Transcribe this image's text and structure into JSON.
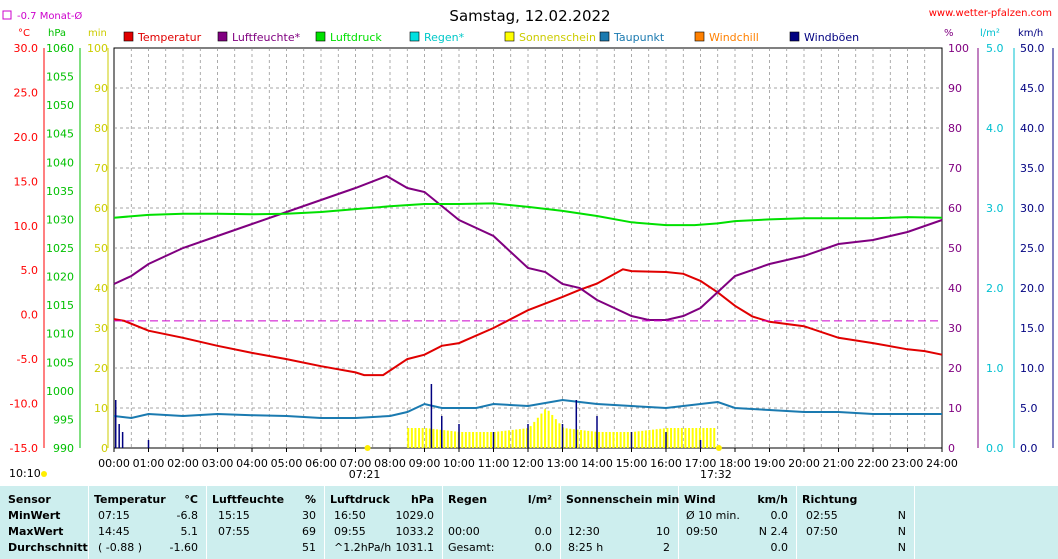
{
  "header": {
    "title": "Samstag, 12.02.2022",
    "site": "www.wetter-pfalzen.com",
    "monthly_avg_label": "-0.7 Monat-Ø",
    "sun_rise_marker": "10:10"
  },
  "legend": [
    {
      "label": "Temperatur",
      "color": "#e00000"
    },
    {
      "label": "Luftfeuchte*",
      "color": "#800080"
    },
    {
      "label": "Luftdruck",
      "color": "#00e000"
    },
    {
      "label": "Regen*",
      "color": "#00e0e0"
    },
    {
      "label": "Sonnenschein",
      "color": "#ffff00"
    },
    {
      "label": "Taupunkt",
      "color": "#1a7ab0"
    },
    {
      "label": "Windchill",
      "color": "#ff8000"
    },
    {
      "label": "Windböen",
      "color": "#000080"
    }
  ],
  "axes": {
    "temp_unit": "°C",
    "hpa_unit": "hPa",
    "min_unit": "min",
    "pct_unit": "%",
    "rain_unit": "l/m²",
    "wind_unit": "km/h",
    "temp_ticks": [
      "30.0",
      "25.0",
      "20.0",
      "15.0",
      "10.0",
      "5.0",
      "0.0",
      "-5.0",
      "-10.0",
      "-15.0"
    ],
    "hpa_ticks": [
      "1060",
      "1055",
      "1050",
      "1045",
      "1040",
      "1035",
      "1030",
      "1025",
      "1020",
      "1015",
      "1010",
      "1005",
      "1000",
      "995",
      "990"
    ],
    "min_ticks": [
      "100",
      "90",
      "80",
      "70",
      "60",
      "50",
      "40",
      "30",
      "20",
      "10",
      "0"
    ],
    "pct_ticks": [
      "100",
      "90",
      "80",
      "70",
      "60",
      "50",
      "40",
      "30",
      "20",
      "10",
      "0"
    ],
    "rain_ticks": [
      "5.0",
      "4.0",
      "3.0",
      "2.0",
      "1.0",
      "0.0"
    ],
    "wind_ticks": [
      "50.0",
      "45.0",
      "40.0",
      "35.0",
      "30.0",
      "25.0",
      "20.0",
      "15.0",
      "10.0",
      "5.0",
      "0.0"
    ],
    "hour_ticks": [
      "00:00",
      "01:00",
      "02:00",
      "03:00",
      "04:00",
      "05:00",
      "06:00",
      "07:00",
      "08:00",
      "09:00",
      "10:00",
      "11:00",
      "12:00",
      "13:00",
      "14:00",
      "15:00",
      "16:00",
      "17:00",
      "18:00",
      "19:00",
      "20:00",
      "21:00",
      "22:00",
      "23:00",
      "24:00"
    ],
    "sunrise": "07:21",
    "sunset": "17:32"
  },
  "chart_data": {
    "type": "line",
    "title": "Samstag, 12.02.2022",
    "x_unit": "hours",
    "xlim": [
      0,
      24
    ],
    "grid": true,
    "series": [
      {
        "name": "Temperatur",
        "axis": "°C",
        "ylim": [
          -15,
          30
        ],
        "points": [
          [
            0,
            -0.5
          ],
          [
            0.3,
            -0.7
          ],
          [
            1,
            -1.8
          ],
          [
            2,
            -2.6
          ],
          [
            3,
            -3.5
          ],
          [
            4,
            -4.3
          ],
          [
            5,
            -5.0
          ],
          [
            6,
            -5.8
          ],
          [
            7,
            -6.5
          ],
          [
            7.25,
            -6.8
          ],
          [
            7.8,
            -6.8
          ],
          [
            8.5,
            -5.0
          ],
          [
            9,
            -4.5
          ],
          [
            9.5,
            -3.5
          ],
          [
            10,
            -3.2
          ],
          [
            11,
            -1.5
          ],
          [
            12,
            0.5
          ],
          [
            13,
            2.0
          ],
          [
            13.5,
            2.8
          ],
          [
            14,
            3.5
          ],
          [
            14.75,
            5.1
          ],
          [
            15,
            4.9
          ],
          [
            16,
            4.8
          ],
          [
            16.5,
            4.6
          ],
          [
            17,
            3.8
          ],
          [
            17.5,
            2.5
          ],
          [
            18,
            1.0
          ],
          [
            18.5,
            -0.2
          ],
          [
            19,
            -0.8
          ],
          [
            20,
            -1.3
          ],
          [
            21,
            -2.6
          ],
          [
            22,
            -3.2
          ],
          [
            23,
            -3.9
          ],
          [
            23.5,
            -4.1
          ],
          [
            24,
            -4.5
          ]
        ]
      },
      {
        "name": "Luftfeuchte*",
        "axis": "%",
        "ylim": [
          0,
          100
        ],
        "points": [
          [
            0,
            41
          ],
          [
            0.5,
            43
          ],
          [
            1,
            46
          ],
          [
            2,
            50
          ],
          [
            3,
            53
          ],
          [
            4,
            56
          ],
          [
            5,
            59
          ],
          [
            6,
            62
          ],
          [
            7,
            65
          ],
          [
            7.9,
            68
          ],
          [
            8.5,
            65
          ],
          [
            9,
            64
          ],
          [
            10,
            57
          ],
          [
            11,
            53
          ],
          [
            12,
            45
          ],
          [
            12.5,
            44
          ],
          [
            13,
            41
          ],
          [
            13.5,
            40
          ],
          [
            14,
            37
          ],
          [
            14.5,
            35
          ],
          [
            15,
            33
          ],
          [
            15.5,
            32
          ],
          [
            16,
            32
          ],
          [
            16.5,
            33
          ],
          [
            17,
            35
          ],
          [
            17.5,
            39
          ],
          [
            18,
            43
          ],
          [
            19,
            46
          ],
          [
            20,
            48
          ],
          [
            21,
            51
          ],
          [
            22,
            52
          ],
          [
            23,
            54
          ],
          [
            24,
            57
          ]
        ]
      },
      {
        "name": "Luftdruck",
        "axis": "hPa",
        "ylim": [
          990,
          1060
        ],
        "points": [
          [
            0,
            1030.3
          ],
          [
            1,
            1030.8
          ],
          [
            2,
            1031.0
          ],
          [
            3,
            1031.0
          ],
          [
            4,
            1030.9
          ],
          [
            5,
            1031.0
          ],
          [
            6,
            1031.3
          ],
          [
            7,
            1031.8
          ],
          [
            8,
            1032.3
          ],
          [
            9,
            1032.7
          ],
          [
            10,
            1032.7
          ],
          [
            11,
            1032.8
          ],
          [
            12,
            1032.2
          ],
          [
            13,
            1031.5
          ],
          [
            14,
            1030.6
          ],
          [
            15,
            1029.5
          ],
          [
            16,
            1029.0
          ],
          [
            16.83,
            1029.0
          ],
          [
            17.5,
            1029.3
          ],
          [
            18,
            1029.7
          ],
          [
            19,
            1030.0
          ],
          [
            20,
            1030.2
          ],
          [
            21,
            1030.2
          ],
          [
            22,
            1030.2
          ],
          [
            23,
            1030.4
          ],
          [
            24,
            1030.3
          ]
        ]
      },
      {
        "name": "Taupunkt",
        "axis": "min",
        "ylim": [
          0,
          100
        ],
        "points": [
          [
            0,
            8
          ],
          [
            0.5,
            7.5
          ],
          [
            1,
            8.5
          ],
          [
            2,
            8
          ],
          [
            3,
            8.5
          ],
          [
            4,
            8.2
          ],
          [
            5,
            8
          ],
          [
            6,
            7.5
          ],
          [
            7,
            7.5
          ],
          [
            8,
            8
          ],
          [
            8.5,
            9
          ],
          [
            9,
            11
          ],
          [
            9.5,
            10
          ],
          [
            10,
            10
          ],
          [
            10.5,
            10
          ],
          [
            11,
            11
          ],
          [
            12,
            10.5
          ],
          [
            13,
            12
          ],
          [
            14,
            11
          ],
          [
            15,
            10.5
          ],
          [
            16,
            10
          ],
          [
            17,
            11
          ],
          [
            17.5,
            11.5
          ],
          [
            18,
            10
          ],
          [
            19,
            9.5
          ],
          [
            20,
            9
          ],
          [
            21,
            9
          ],
          [
            22,
            8.5
          ],
          [
            23,
            8.5
          ],
          [
            24,
            8.5
          ]
        ]
      },
      {
        "name": "Sonnenschein",
        "axis": "min",
        "ylim": [
          0,
          100
        ],
        "points": [
          [
            8.5,
            5
          ],
          [
            9,
            5
          ],
          [
            10,
            4
          ],
          [
            11,
            4
          ],
          [
            12,
            5
          ],
          [
            12.5,
            10
          ],
          [
            13,
            5
          ],
          [
            14,
            4
          ],
          [
            15,
            4
          ],
          [
            16,
            5
          ],
          [
            17.4,
            5
          ]
        ]
      },
      {
        "name": "Windböen",
        "axis": "km/h",
        "ylim": [
          0,
          50
        ],
        "points": [
          [
            0.05,
            6
          ],
          [
            0.15,
            3
          ],
          [
            0.25,
            2
          ],
          [
            1,
            1
          ],
          [
            9.2,
            8
          ],
          [
            9.5,
            4
          ],
          [
            10,
            3
          ],
          [
            11,
            2
          ],
          [
            12,
            3
          ],
          [
            13,
            3
          ],
          [
            13.4,
            6
          ],
          [
            14,
            4
          ],
          [
            15,
            2
          ],
          [
            16,
            2
          ],
          [
            17,
            1
          ]
        ]
      },
      {
        "name": "-0.7 Monat-Ø",
        "axis": "°C",
        "ylim": [
          -15,
          30
        ],
        "points": [
          [
            0,
            -0.7
          ],
          [
            24,
            -0.7
          ]
        ]
      }
    ]
  },
  "stats": {
    "headers": {
      "sensor": "Sensor",
      "temp": "Temperatur",
      "temp_u": "°C",
      "hum": "Luftfeuchte",
      "hum_u": "%",
      "press": "Luftdruck",
      "press_u": "hPa",
      "rain": "Regen",
      "rain_u": "l/m²",
      "sun": "Sonnenschein min",
      "wind": "Wind",
      "wind_u": "km/h",
      "dir": "Richtung"
    },
    "rows": [
      {
        "label": "MinWert",
        "temp_time": "07:15",
        "temp_val": "-6.8",
        "hum_time": "15:15",
        "hum_val": "30",
        "press_time": "16:50",
        "press_val": "1029.0",
        "rain_time": "",
        "rain_val": "",
        "sun_time": "",
        "sun_val": "",
        "wind_time": "Ø 10 min.",
        "wind_val": "0.0",
        "dir_time": "02:55",
        "dir_val": "N"
      },
      {
        "label": "MaxWert",
        "temp_time": "14:45",
        "temp_val": "5.1",
        "hum_time": "07:55",
        "hum_val": "69",
        "press_time": "09:55",
        "press_val": "1033.2",
        "rain_time": "00:00",
        "rain_val": "0.0",
        "sun_time": "12:30",
        "sun_val": "10",
        "wind_time": "09:50",
        "wind_val": "N 2.4",
        "dir_time": "07:50",
        "dir_val": "N"
      },
      {
        "label": "Durchschnitt",
        "temp_time": "( -0.88 )",
        "temp_val": "-1.60",
        "hum_time": "",
        "hum_val": "51",
        "press_time": "^1.2hPa/h",
        "press_val": "1031.1",
        "rain_time": "Gesamt:",
        "rain_val": "0.0",
        "sun_time": "8:25 h",
        "sun_val": "2",
        "wind_time": "",
        "wind_val": "0.0",
        "dir_time": "",
        "dir_val": "N"
      }
    ]
  }
}
